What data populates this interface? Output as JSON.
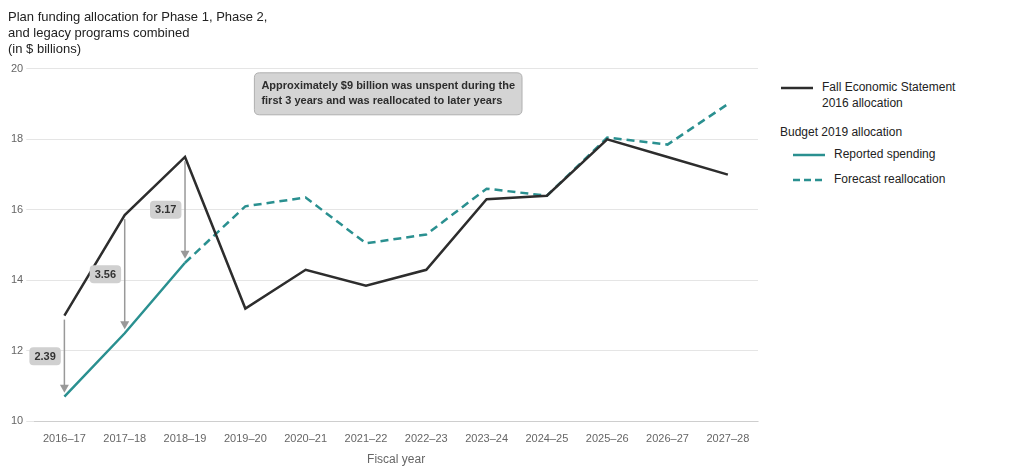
{
  "chart_data": {
    "type": "line",
    "title": "Plan funding allocation for Phase 1, Phase 2,\nand legacy programs combined\n(in $ billions)",
    "xlabel": "Fiscal year",
    "categories": [
      "2016–17",
      "2017–18",
      "2018–19",
      "2019–20",
      "2020–21",
      "2021–22",
      "2022–23",
      "2023–24",
      "2024–25",
      "2025–26",
      "2026–27",
      "2027–28"
    ],
    "series": [
      {
        "name": "Fall Economic Statement\n2016 allocation",
        "color": "#2d2d2d",
        "line_style": "solid",
        "values": [
          13.0,
          15.85,
          17.5,
          13.2,
          14.3,
          13.85,
          14.3,
          16.3,
          16.4,
          18.0,
          17.5,
          17.0
        ]
      },
      {
        "name": "Reported spending",
        "group": "Budget 2019 allocation",
        "color": "#2a9090",
        "line_style": "solid",
        "values": [
          10.7,
          12.5,
          14.5,
          null,
          null,
          null,
          null,
          null,
          null,
          null,
          null,
          null
        ]
      },
      {
        "name": "Forecast reallocation",
        "group": "Budget 2019 allocation",
        "color": "#2a9090",
        "line_style": "dashed",
        "values": [
          null,
          null,
          14.5,
          16.1,
          16.35,
          15.05,
          15.3,
          16.6,
          16.4,
          18.05,
          17.85,
          19.0
        ]
      }
    ],
    "annotations": [
      {
        "text": "2.39",
        "category": "2016–17"
      },
      {
        "text": "3.56",
        "category": "2017–18"
      },
      {
        "text": "3.17",
        "category": "2018–19"
      },
      {
        "text": "Approximately $9 billion was unspent during the\nfirst 3 years and was reallocated to later years"
      }
    ],
    "ylim": [
      10,
      20
    ],
    "yticks": [
      10,
      12,
      14,
      16,
      18,
      20
    ],
    "grid": "y",
    "legend": "right",
    "marker": "none"
  }
}
